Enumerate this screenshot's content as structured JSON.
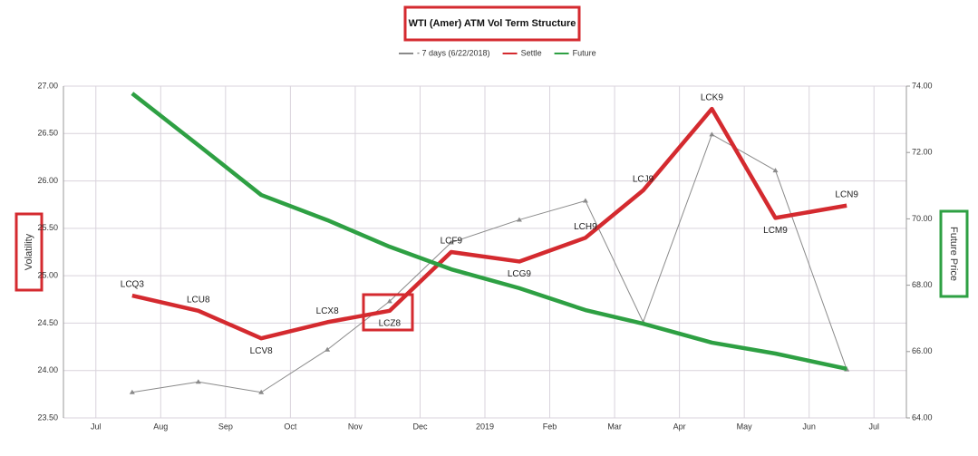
{
  "chart_data": {
    "type": "line",
    "title": "WTI (Amer) ATM Vol Term Structure",
    "y_label": "Volatility",
    "y2_label": "Future Price",
    "legend": "top",
    "grid": true,
    "xlim": [
      -0.5,
      12.5
    ],
    "xticks": [
      {
        "value": 0,
        "label": "Jul"
      },
      {
        "value": 1,
        "label": "Aug"
      },
      {
        "value": 2,
        "label": "Sep"
      },
      {
        "value": 3,
        "label": "Oct"
      },
      {
        "value": 4,
        "label": "Nov"
      },
      {
        "value": 5,
        "label": "Dec"
      },
      {
        "value": 6,
        "label": "2019"
      },
      {
        "value": 7,
        "label": "Feb"
      },
      {
        "value": 8,
        "label": "Mar"
      },
      {
        "value": 9,
        "label": "Apr"
      },
      {
        "value": 10,
        "label": "May"
      },
      {
        "value": 11,
        "label": "Jun"
      },
      {
        "value": 12,
        "label": "Jul"
      }
    ],
    "ylim": [
      23.5,
      27
    ],
    "yticks": [
      {
        "value": 23.5,
        "label": "23.50"
      },
      {
        "value": 24,
        "label": "24.00"
      },
      {
        "value": 24.5,
        "label": "24.50"
      },
      {
        "value": 25,
        "label": "25.00"
      },
      {
        "value": 25.5,
        "label": "25.50"
      },
      {
        "value": 26,
        "label": "26.00"
      },
      {
        "value": 26.5,
        "label": "26.50"
      },
      {
        "value": 27,
        "label": "27.00"
      }
    ],
    "y2lim": [
      64,
      74
    ],
    "y2ticks": [
      {
        "value": 64,
        "label": "64.00"
      },
      {
        "value": 66,
        "label": "66.00"
      },
      {
        "value": 68,
        "label": "68.00"
      },
      {
        "value": 70,
        "label": "70.00"
      },
      {
        "value": 72,
        "label": "72.00"
      },
      {
        "value": 74,
        "label": "74.00"
      }
    ],
    "x": [
      0.56,
      1.58,
      2.55,
      3.57,
      4.53,
      5.48,
      6.53,
      7.55,
      8.44,
      9.5,
      10.48,
      11.58
    ],
    "series": [
      {
        "name": "- 7 days (6/22/2018)",
        "color": "#8a8a8a",
        "values": [
          23.77,
          23.88,
          23.77,
          24.22,
          24.73,
          25.35,
          25.59,
          25.79,
          24.51,
          26.49,
          26.11,
          24.01
        ]
      },
      {
        "name": "Settle",
        "color": "#d42a2f",
        "values": [
          24.79,
          24.63,
          24.34,
          24.51,
          24.63,
          25.25,
          25.15,
          25.4,
          25.9,
          26.76,
          25.61,
          25.74
        ],
        "labels": [
          "LCQ3",
          "LCU8",
          "LCV8",
          "LCX8",
          "LCZ8",
          "LCF9",
          "LCG9",
          "LCH9",
          "LCJ9",
          "LCK9",
          "LCM9",
          "LCN9"
        ]
      },
      {
        "name": "Future",
        "color": "#2ea043",
        "axis": "y2",
        "values": [
          73.78,
          72.22,
          70.72,
          69.96,
          69.16,
          68.48,
          67.91,
          67.25,
          66.84,
          66.27,
          65.94,
          65.48
        ]
      }
    ]
  }
}
